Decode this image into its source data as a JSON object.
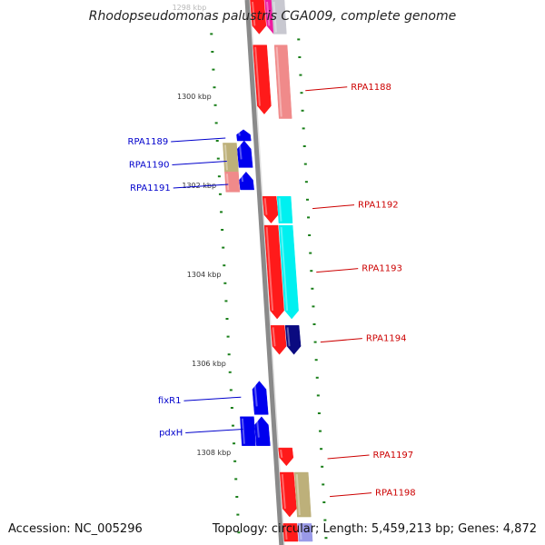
{
  "title": "Rhodopseudomonas palustris CGA009, complete genome",
  "footer": {
    "accession": "Accession: NC_005296",
    "summary": "Topology: circular; Length: 5,459,213 bp; Genes: 4,872"
  },
  "scale_labels": [
    {
      "text": "1298 kbp",
      "kbp": 1298,
      "faded": true
    },
    {
      "text": "1300 kbp",
      "kbp": 1300
    },
    {
      "text": "1302 kbp",
      "kbp": 1302
    },
    {
      "text": "1304 kbp",
      "kbp": 1304
    },
    {
      "text": "1306 kbp",
      "kbp": 1306
    },
    {
      "text": "1308 kbp",
      "kbp": 1308
    }
  ],
  "gene_labels": [
    {
      "name": "RPA1188",
      "strand": "minus",
      "kbp": 1299.75
    },
    {
      "name": "RPA1189",
      "strand": "plus",
      "kbp": 1300.98
    },
    {
      "name": "RPA1190",
      "strand": "plus",
      "kbp": 1301.5
    },
    {
      "name": "RPA1191",
      "strand": "plus",
      "kbp": 1302.02
    },
    {
      "name": "RPA1192",
      "strand": "minus",
      "kbp": 1302.4
    },
    {
      "name": "RPA1193",
      "strand": "minus",
      "kbp": 1303.83
    },
    {
      "name": "RPA1194",
      "strand": "minus",
      "kbp": 1305.4
    },
    {
      "name": "fixR1",
      "strand": "plus",
      "kbp": 1306.8
    },
    {
      "name": "pdxH",
      "strand": "plus",
      "kbp": 1307.52
    },
    {
      "name": "RPA1197",
      "strand": "minus",
      "kbp": 1308.02
    },
    {
      "name": "RPA1198",
      "strand": "minus",
      "kbp": 1308.87
    }
  ],
  "colors": {
    "plus_label": "#0000cc",
    "minus_label": "#cc0000",
    "tick": "#1a7f1a",
    "backbone": "#8a8a8a",
    "gene_red": "#ff1a1a",
    "gene_pink": "#f08a8a",
    "gene_cyan": "#00f0f0",
    "gene_navy": "#0a0a80",
    "gene_blue": "#0000ee",
    "gene_tan": "#bdb07a",
    "gene_magenta": "#ee1aa0",
    "gene_silver": "#c8c8d0",
    "gene_lavender": "#9a9ae8"
  },
  "features": [
    {
      "track": "minus_inner",
      "start": 1297.4,
      "end": 1298.6,
      "color": "gene_red",
      "dir": "down"
    },
    {
      "track": "minus_mid",
      "start": 1297.4,
      "end": 1298.6,
      "color": "gene_magenta",
      "dir": "down"
    },
    {
      "track": "minus_outer",
      "start": 1297.4,
      "end": 1298.6,
      "color": "gene_silver",
      "dir": "none"
    },
    {
      "track": "minus_inner",
      "start": 1298.85,
      "end": 1300.4,
      "color": "gene_red",
      "dir": "down"
    },
    {
      "track": "minus_outer",
      "start": 1298.85,
      "end": 1300.5,
      "color": "gene_pink",
      "dir": "none"
    },
    {
      "track": "plus_inner",
      "start": 1300.75,
      "end": 1301.0,
      "color": "gene_blue",
      "dir": "up"
    },
    {
      "track": "plus_inner",
      "start": 1301.0,
      "end": 1301.6,
      "color": "gene_blue",
      "dir": "up"
    },
    {
      "track": "plus_outer",
      "start": 1301.05,
      "end": 1301.7,
      "color": "gene_tan",
      "dir": "none"
    },
    {
      "track": "plus_inner",
      "start": 1301.7,
      "end": 1302.1,
      "color": "gene_blue",
      "dir": "up"
    },
    {
      "track": "plus_outer",
      "start": 1301.7,
      "end": 1302.15,
      "color": "gene_pink",
      "dir": "none"
    },
    {
      "track": "minus_inner",
      "start": 1302.25,
      "end": 1302.85,
      "color": "gene_red",
      "dir": "down"
    },
    {
      "track": "minus_mid",
      "start": 1302.25,
      "end": 1302.85,
      "color": "gene_cyan",
      "dir": "none"
    },
    {
      "track": "minus_inner",
      "start": 1302.9,
      "end": 1305.0,
      "color": "gene_red",
      "dir": "down"
    },
    {
      "track": "minus_mid",
      "start": 1302.9,
      "end": 1305.0,
      "color": "gene_cyan",
      "dir": "down"
    },
    {
      "track": "minus_inner",
      "start": 1305.15,
      "end": 1305.8,
      "color": "gene_red",
      "dir": "down"
    },
    {
      "track": "minus_mid",
      "start": 1305.15,
      "end": 1305.8,
      "color": "gene_navy",
      "dir": "down"
    },
    {
      "track": "plus_inner",
      "start": 1306.4,
      "end": 1307.15,
      "color": "gene_blue",
      "dir": "up"
    },
    {
      "track": "plus_inner",
      "start": 1307.2,
      "end": 1307.85,
      "color": "gene_blue",
      "dir": "up"
    },
    {
      "track": "plus_outer",
      "start": 1307.2,
      "end": 1307.85,
      "color": "gene_blue",
      "dir": "none"
    },
    {
      "track": "minus_inner",
      "start": 1307.9,
      "end": 1308.3,
      "color": "gene_red",
      "dir": "down"
    },
    {
      "track": "minus_inner",
      "start": 1308.45,
      "end": 1309.45,
      "color": "gene_red",
      "dir": "down"
    },
    {
      "track": "minus_mid",
      "start": 1308.45,
      "end": 1309.45,
      "color": "gene_tan",
      "dir": "none"
    },
    {
      "track": "minus_inner",
      "start": 1309.6,
      "end": 1310.0,
      "color": "gene_red",
      "dir": "none"
    },
    {
      "track": "minus_mid",
      "start": 1309.6,
      "end": 1310.0,
      "color": "gene_lavender",
      "dir": "none"
    }
  ]
}
